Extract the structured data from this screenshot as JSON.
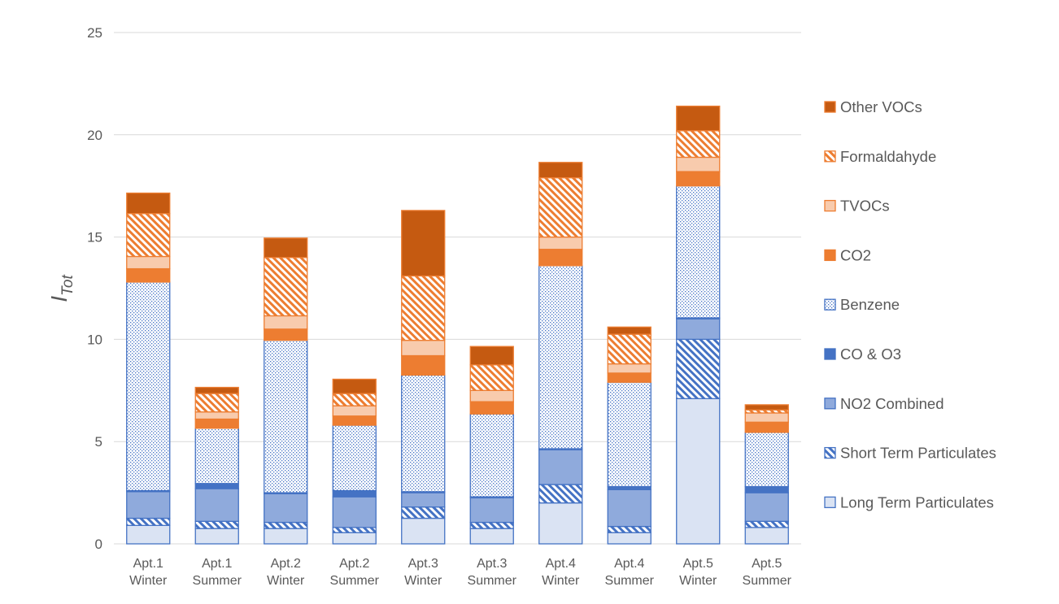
{
  "chart_data": {
    "type": "bar",
    "stacked": true,
    "title": "",
    "xlabel": "",
    "ylabel": {
      "main": "I",
      "sub": "Tot"
    },
    "ylim": [
      0,
      25
    ],
    "yticks": [
      "0",
      "5",
      "10",
      "15",
      "20",
      "25"
    ],
    "grid": true,
    "legend_position": "right",
    "categories": [
      [
        "Apt.1",
        "Winter"
      ],
      [
        "Apt.1",
        "Summer"
      ],
      [
        "Apt.2",
        "Winter"
      ],
      [
        "Apt.2",
        "Summer"
      ],
      [
        "Apt.3",
        "Winter"
      ],
      [
        "Apt.3",
        "Summer"
      ],
      [
        "Apt.4",
        "Winter"
      ],
      [
        "Apt.4",
        "Summer"
      ],
      [
        "Apt.5",
        "Winter"
      ],
      [
        "Apt.5",
        "Summer"
      ]
    ],
    "series": [
      {
        "name": "Long Term Particulates",
        "color": "#dae3f3",
        "stroke": "#4472c4",
        "pattern": "none",
        "values": [
          0.9,
          0.75,
          0.75,
          0.55,
          1.25,
          0.75,
          2.0,
          0.55,
          7.1,
          0.8
        ]
      },
      {
        "name": "Short Term Particulates",
        "color": "#4472c4",
        "stroke": "#4472c4",
        "pattern": "diag",
        "values": [
          0.35,
          0.35,
          0.3,
          0.25,
          0.55,
          0.3,
          0.9,
          0.3,
          2.9,
          0.3
        ]
      },
      {
        "name": "NO2 Combined",
        "color": "#8faadc",
        "stroke": "#4472c4",
        "pattern": "none",
        "values": [
          1.3,
          1.6,
          1.4,
          1.5,
          0.7,
          1.2,
          1.7,
          1.8,
          1.0,
          1.4
        ]
      },
      {
        "name": "CO & O3",
        "color": "#4472c4",
        "stroke": "#4472c4",
        "pattern": "none",
        "values": [
          0.05,
          0.25,
          0.05,
          0.3,
          0.05,
          0.05,
          0.05,
          0.15,
          0.05,
          0.3
        ]
      },
      {
        "name": "Benzene",
        "color": "#4472c4",
        "stroke": "#4472c4",
        "pattern": "dots",
        "values": [
          10.2,
          2.7,
          7.45,
          3.2,
          5.7,
          4.05,
          8.95,
          5.1,
          6.45,
          2.65
        ]
      },
      {
        "name": "CO2",
        "color": "#ed7d31",
        "stroke": "#ed7d31",
        "pattern": "none",
        "values": [
          0.65,
          0.45,
          0.55,
          0.45,
          0.95,
          0.6,
          0.8,
          0.45,
          0.7,
          0.5
        ]
      },
      {
        "name": "TVOCs",
        "color": "#f8cbad",
        "stroke": "#ed7d31",
        "pattern": "none",
        "values": [
          0.6,
          0.35,
          0.65,
          0.5,
          0.75,
          0.55,
          0.6,
          0.45,
          0.7,
          0.45
        ]
      },
      {
        "name": "Formaldahyde",
        "color": "#ed7d31",
        "stroke": "#ed7d31",
        "pattern": "diag",
        "values": [
          2.1,
          0.9,
          2.85,
          0.6,
          3.15,
          1.25,
          2.9,
          1.45,
          1.3,
          0.15
        ]
      },
      {
        "name": "Other VOCs",
        "color": "#c55a11",
        "stroke": "#ed7d31",
        "pattern": "none",
        "values": [
          1.0,
          0.3,
          0.95,
          0.7,
          3.2,
          0.9,
          0.75,
          0.35,
          1.2,
          0.25
        ]
      }
    ]
  }
}
